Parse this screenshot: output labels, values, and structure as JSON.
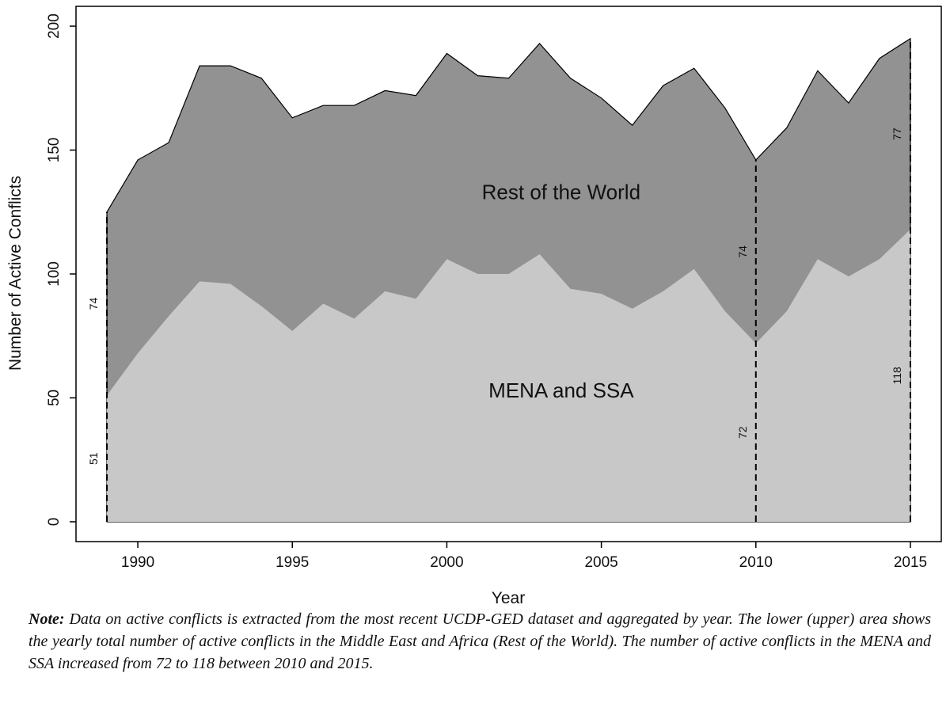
{
  "chart_data": {
    "type": "area",
    "xlabel": "Year",
    "ylabel": "Number of Active Conflicts",
    "xlim": [
      1988,
      2016
    ],
    "ylim": [
      -8,
      208
    ],
    "x_ticks": [
      1990,
      1995,
      2000,
      2005,
      2010,
      2015
    ],
    "y_ticks": [
      0,
      50,
      100,
      150,
      200
    ],
    "stacked": true,
    "x": [
      1989,
      1990,
      1991,
      1992,
      1993,
      1994,
      1995,
      1996,
      1997,
      1998,
      1999,
      2000,
      2001,
      2002,
      2003,
      2004,
      2005,
      2006,
      2007,
      2008,
      2009,
      2010,
      2011,
      2012,
      2013,
      2014,
      2015
    ],
    "series": [
      {
        "name": "MENA and SSA",
        "color": "#c8c8c8",
        "values": [
          51,
          68,
          83,
          97,
          96,
          87,
          77,
          88,
          82,
          93,
          90,
          106,
          100,
          100,
          108,
          94,
          92,
          86,
          93,
          102,
          85,
          72,
          85,
          106,
          99,
          106,
          118
        ]
      },
      {
        "name": "Rest of the World",
        "color": "#929292",
        "values": [
          74,
          78,
          70,
          87,
          88,
          92,
          86,
          80,
          86,
          81,
          82,
          83,
          80,
          79,
          85,
          85,
          79,
          74,
          83,
          81,
          82,
          74,
          74,
          76,
          70,
          81,
          77
        ]
      }
    ],
    "annotations": [
      {
        "year": 1989,
        "lower": "51",
        "upper": "74"
      },
      {
        "year": 2010,
        "lower": "72",
        "upper": "74"
      },
      {
        "year": 2015,
        "lower": "118",
        "upper": "77"
      }
    ]
  },
  "note": {
    "label": "Note:",
    "text": " Data on active conflicts is extracted from the most recent UCDP-GED dataset and aggregated by year. The lower (upper) area shows the yearly total number of active conflicts in the Middle East and Africa (Rest of the World). The number of active conflicts in the MENA and SSA increased from 72 to 118 between 2010 and 2015."
  }
}
